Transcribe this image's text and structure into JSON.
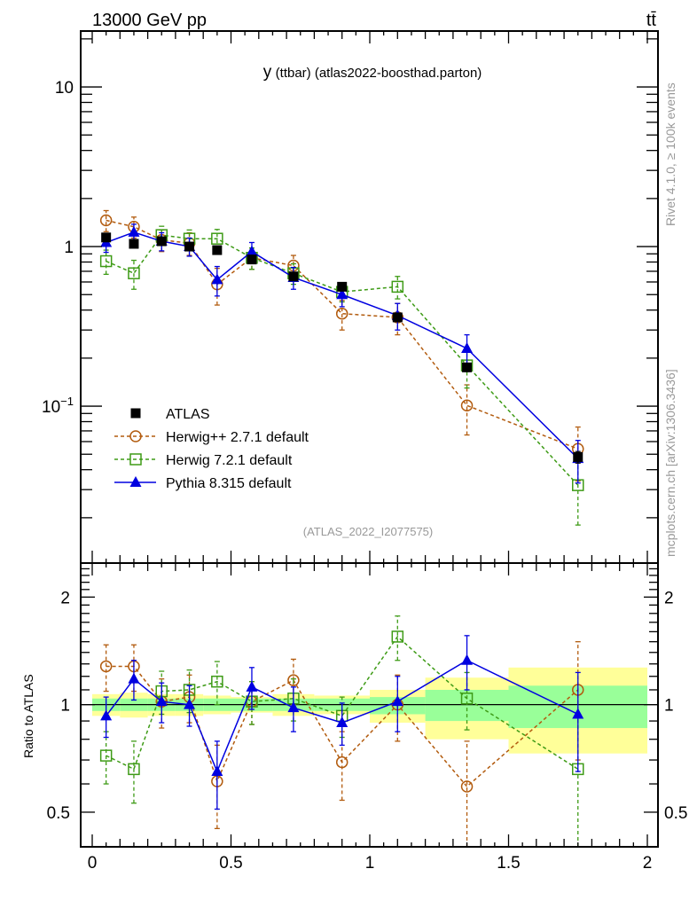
{
  "header": {
    "left": "13000 GeV pp",
    "right": "tt̄"
  },
  "side_labels": {
    "top": "Rivet 4.1.0, ≥ 100k events",
    "bottom": "mcplots.cern.ch [arXiv:1306.3436]"
  },
  "chart_data": [
    {
      "type": "scatter",
      "panel": "main",
      "title_prefix": "y",
      "title": "(ttbar) (atlas2022-boosthad.parton)",
      "reference_label": "(ATLAS_2022_I2077575)",
      "xlabel": "",
      "ylabel": "",
      "xlim": [
        0,
        2
      ],
      "ylim": [
        0.0104,
        22.4
      ],
      "yscale": "log",
      "x_ticks": [
        0,
        0.5,
        1,
        1.5,
        2
      ],
      "y_tick_labels": [
        {
          "value": 10,
          "label": "10"
        },
        {
          "value": 1,
          "label": "1"
        },
        {
          "value": 0.1,
          "label": "10^-1"
        }
      ],
      "bins": [
        [
          0,
          0.1
        ],
        [
          0.1,
          0.2
        ],
        [
          0.2,
          0.3
        ],
        [
          0.3,
          0.4
        ],
        [
          0.4,
          0.5
        ],
        [
          0.5,
          0.65
        ],
        [
          0.65,
          0.8
        ],
        [
          0.8,
          1.0
        ],
        [
          1.0,
          1.2
        ],
        [
          1.2,
          1.5
        ],
        [
          1.5,
          2.0
        ]
      ],
      "x": [
        0.05,
        0.15,
        0.25,
        0.35,
        0.45,
        0.575,
        0.725,
        0.9,
        1.1,
        1.35,
        1.75
      ],
      "legend_position": "lower-left",
      "series": [
        {
          "name": "ATLAS",
          "color": "#000000",
          "marker": "filled-square",
          "line": "none",
          "values": [
            1.14,
            1.04,
            1.08,
            1.0,
            0.95,
            0.83,
            0.65,
            0.56,
            0.36,
            0.175,
            0.048
          ],
          "errors": [
            0.04,
            0.04,
            0.04,
            0.04,
            0.04,
            0.03,
            0.03,
            0.02,
            0.02,
            0.01,
            0.004
          ]
        },
        {
          "name": "Herwig++ 2.7.1 default",
          "color": "#b25b0e",
          "marker": "open-circle",
          "line": "dashed",
          "values": [
            1.46,
            1.33,
            1.1,
            1.05,
            0.58,
            0.85,
            0.76,
            0.38,
            0.36,
            0.101,
            0.054
          ],
          "errors": [
            0.22,
            0.2,
            0.17,
            0.17,
            0.15,
            0.13,
            0.12,
            0.08,
            0.08,
            0.035,
            0.02
          ]
        },
        {
          "name": "Herwig 7.2.1 default",
          "color": "#3e9b16",
          "marker": "open-square",
          "line": "dashed",
          "values": [
            0.81,
            0.68,
            1.18,
            1.12,
            1.12,
            0.85,
            0.68,
            0.52,
            0.56,
            0.18,
            0.032
          ],
          "errors": [
            0.14,
            0.14,
            0.16,
            0.15,
            0.16,
            0.13,
            0.1,
            0.07,
            0.09,
            0.05,
            0.014
          ]
        },
        {
          "name": "Pythia 8.315 default",
          "color": "#0000e0",
          "marker": "filled-triangle",
          "line": "solid",
          "values": [
            1.06,
            1.23,
            1.08,
            1.0,
            0.62,
            0.93,
            0.64,
            0.5,
            0.37,
            0.23,
            0.047
          ],
          "errors": [
            0.14,
            0.15,
            0.14,
            0.13,
            0.13,
            0.13,
            0.1,
            0.08,
            0.07,
            0.05,
            0.014
          ]
        }
      ]
    },
    {
      "type": "scatter",
      "panel": "ratio",
      "ylabel": "Ratio to ATLAS",
      "xlim": [
        0,
        2
      ],
      "ylim": [
        0.4,
        2.49
      ],
      "yscale": "log",
      "x_tick_labels": [
        {
          "value": 0,
          "label": "0"
        },
        {
          "value": 0.5,
          "label": "0.5"
        },
        {
          "value": 1,
          "label": "1"
        },
        {
          "value": 1.5,
          "label": "1.5"
        },
        {
          "value": 2,
          "label": "2"
        }
      ],
      "y_tick_labels": [
        {
          "value": 2,
          "label": "2"
        },
        {
          "value": 1,
          "label": "1"
        },
        {
          "value": 0.5,
          "label": "0.5"
        }
      ],
      "bands": {
        "stat_color": "#99ff99",
        "total_color": "#ffff99",
        "stat": [
          [
            0.96,
            1.04
          ],
          [
            0.96,
            1.04
          ],
          [
            0.96,
            1.04
          ],
          [
            0.96,
            1.04
          ],
          [
            0.96,
            1.04
          ],
          [
            0.96,
            1.04
          ],
          [
            0.96,
            1.04
          ],
          [
            0.96,
            1.04
          ],
          [
            0.94,
            1.05
          ],
          [
            0.9,
            1.1
          ],
          [
            0.86,
            1.13
          ]
        ],
        "total": [
          [
            0.93,
            1.07
          ],
          [
            0.92,
            1.08
          ],
          [
            0.93,
            1.07
          ],
          [
            0.93,
            1.07
          ],
          [
            0.94,
            1.06
          ],
          [
            0.95,
            1.05
          ],
          [
            0.93,
            1.07
          ],
          [
            0.94,
            1.06
          ],
          [
            0.89,
            1.1
          ],
          [
            0.8,
            1.19
          ],
          [
            0.73,
            1.27
          ]
        ]
      },
      "series": [
        {
          "name": "Herwig++ 2.7.1 default",
          "values": [
            1.28,
            1.28,
            1.02,
            1.05,
            0.61,
            1.02,
            1.17,
            0.69,
            1.0,
            0.59,
            1.1
          ],
          "errors": [
            0.19,
            0.19,
            0.16,
            0.16,
            0.16,
            0.14,
            0.17,
            0.15,
            0.21,
            0.2,
            0.4
          ]
        },
        {
          "name": "Herwig 7.2.1 default",
          "values": [
            0.72,
            0.66,
            1.09,
            1.1,
            1.16,
            1.02,
            1.04,
            0.93,
            1.55,
            1.04,
            0.66
          ],
          "errors": [
            0.12,
            0.13,
            0.15,
            0.15,
            0.16,
            0.14,
            0.14,
            0.12,
            0.22,
            0.19,
            0.28
          ]
        },
        {
          "name": "Pythia 8.315 default",
          "values": [
            0.93,
            1.18,
            1.02,
            1.0,
            0.65,
            1.12,
            0.98,
            0.89,
            1.02,
            1.33,
            0.94
          ],
          "errors": [
            0.12,
            0.15,
            0.13,
            0.13,
            0.14,
            0.15,
            0.14,
            0.12,
            0.18,
            0.23,
            0.29
          ]
        }
      ]
    }
  ]
}
